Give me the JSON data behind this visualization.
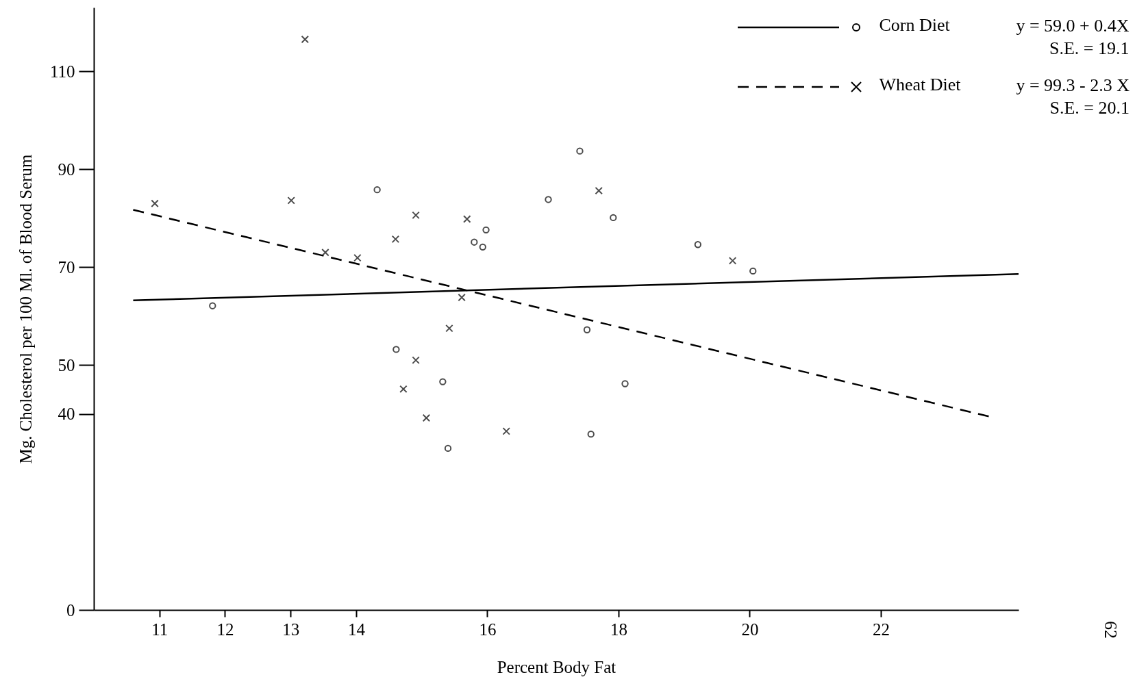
{
  "chart_data": {
    "type": "scatter",
    "xlabel": "Percent Body Fat",
    "ylabel": "Mg. Cholesterol per 100 Ml. of Blood Serum",
    "xlim": [
      10,
      24.1
    ],
    "ylim": [
      0,
      123
    ],
    "xticks": [
      11,
      12,
      13,
      14,
      16,
      18,
      20,
      22
    ],
    "yticks": [
      0,
      40,
      50,
      70,
      90,
      110
    ],
    "grid": false,
    "legend": "top right",
    "series": [
      {
        "name": "Corn Diet",
        "marker": "circle",
        "color": "#000000",
        "x": [
          11.81,
          14.32,
          14.61,
          15.32,
          15.4,
          15.8,
          15.93,
          15.98,
          16.93,
          17.41,
          17.52,
          17.58,
          17.92,
          18.1,
          19.21,
          20.05
        ],
        "values": [
          62.1,
          85.8,
          53.2,
          46.6,
          33.0,
          75.1,
          74.1,
          77.6,
          83.8,
          93.7,
          57.2,
          35.9,
          80.1,
          46.2,
          74.6,
          69.2
        ]
      },
      {
        "name": "Wheat Diet",
        "marker": "cross",
        "color": "#000000",
        "x": [
          10.93,
          13.01,
          13.22,
          13.53,
          14.02,
          14.6,
          14.91,
          14.72,
          14.91,
          15.07,
          15.42,
          15.61,
          15.69,
          16.29,
          17.7,
          19.74
        ],
        "values": [
          83.0,
          83.6,
          116.5,
          73.0,
          71.9,
          75.7,
          80.6,
          45.1,
          51.0,
          39.2,
          57.5,
          63.8,
          79.8,
          36.5,
          85.6,
          71.3
        ]
      },
      {
        "type": "line",
        "line_style": "solid",
        "color": "#000000",
        "x": [
          10.6,
          24.1
        ],
        "values": [
          63.2,
          68.6
        ]
      },
      {
        "type": "line",
        "line_style": "dashed",
        "color": "#000000",
        "x": [
          10.6,
          23.65
        ],
        "values": [
          81.7,
          39.5
        ]
      }
    ],
    "annotations": [
      "y = 59.0 + 0.4X",
      "S.E. = 19.1",
      "y = 99.3 - 2.3 X",
      "S.E. = 20.1",
      "62"
    ]
  }
}
